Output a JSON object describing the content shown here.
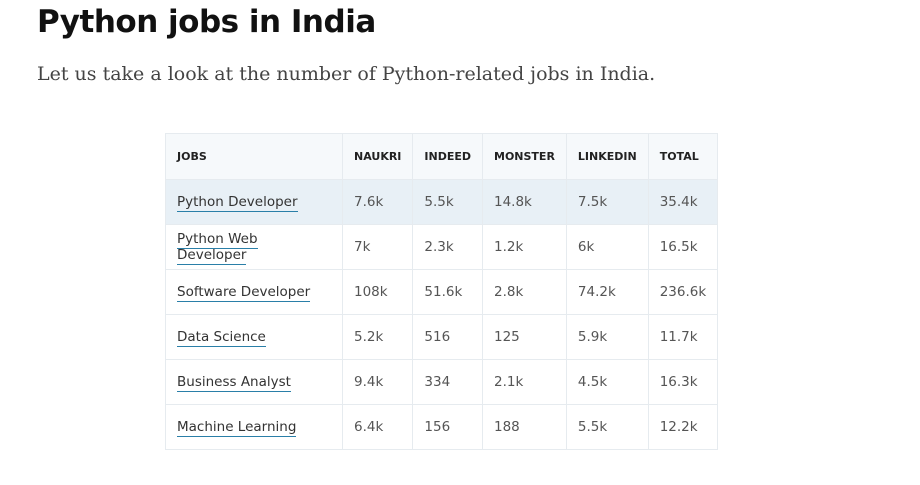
{
  "title": "Python jobs in India",
  "intro": "Let us take a look at the number of Python-related jobs in India.",
  "table": {
    "headers": [
      "JOBS",
      "NAUKRI",
      "INDEED",
      "MONSTER",
      "LINKEDIN",
      "TOTAL"
    ],
    "rows": [
      [
        "Python Developer",
        "7.6k",
        "5.5k",
        "14.8k",
        "7.5k",
        "35.4k"
      ],
      [
        "Python Web Developer",
        "7k",
        "2.3k",
        "1.2k",
        "6k",
        "16.5k"
      ],
      [
        "Software Developer",
        "108k",
        "51.6k",
        "2.8k",
        "74.2k",
        "236.6k"
      ],
      [
        "Data Science",
        "5.2k",
        "516",
        "125",
        "5.9k",
        "11.7k"
      ],
      [
        "Business Analyst",
        "9.4k",
        "334",
        "2.1k",
        "4.5k",
        "16.3k"
      ],
      [
        "Machine Learning",
        "6.4k",
        "156",
        "188",
        "5.5k",
        "12.2k"
      ]
    ]
  }
}
